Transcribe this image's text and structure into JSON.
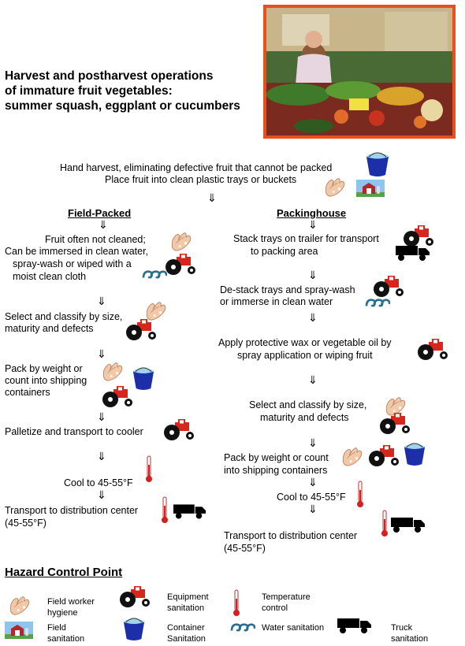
{
  "title_lines": [
    "Harvest and postharvest operations",
    "of immature fruit vegetables:",
    "summer squash, eggplant or cucumbers"
  ],
  "top_steps": [
    "Hand harvest, eliminating defective fruit that cannot be packed",
    "Place fruit into clean plastic trays or buckets"
  ],
  "arrow": "⇓",
  "field_packed": {
    "heading": "Field-Packed",
    "s1": "Fruit often not cleaned;",
    "s2": "Can be immersed in clean water,",
    "s3": "spray-wash or wiped with a",
    "s4": "moist clean cloth",
    "s5": "Select and classify by size,",
    "s6": "maturity and defects",
    "s7": "Pack by weight or",
    "s8": "count into shipping",
    "s9": "containers",
    "s10": "Palletize and transport to cooler",
    "s11": "Cool to 45-55°F",
    "s12": "Transport to distribution center",
    "s13": "(45-55°F)"
  },
  "packinghouse": {
    "heading": "Packinghouse",
    "s1": "Stack trays on trailer for transport",
    "s2": "to packing area",
    "s3": "De-stack trays and spray-wash",
    "s4": "or immerse in clean water",
    "s5": "Apply protective wax or vegetable oil by",
    "s6": "spray application or wiping fruit",
    "s7": "Select and classify by size,",
    "s8": "maturity and defects",
    "s9": "Pack by weight or count",
    "s10": "into shipping containers",
    "s11": "Cool to 45-55°F",
    "s12": "Transport to distribution center",
    "s13": "(45-55°F)"
  },
  "legend": {
    "heading": "Hazard Control Point",
    "worker_1": "Field worker",
    "worker_2": "hygiene",
    "equip_1": "Equipment",
    "equip_2": "sanitation",
    "temp_1": "Temperature",
    "temp_2": "control",
    "field_1": "Field",
    "field_2": "sanitation",
    "container_1": "Container",
    "container_2": "Sanitation",
    "water": "Water sanitation",
    "truck_1": "Truck",
    "truck_2": "sanitation"
  },
  "icons": [
    "hands-icon",
    "tractor-icon",
    "thermometer-icon",
    "barn-icon",
    "bucket-icon",
    "water-icon",
    "truck-icon"
  ],
  "colors": {
    "photo_border": "#e8501f",
    "tractor_red": "#d9261c",
    "bucket_blue": "#1c2fa8",
    "water_teal": "#2a6f8f",
    "barn_red": "#b3262b",
    "thermo_red": "#d61f1f"
  }
}
